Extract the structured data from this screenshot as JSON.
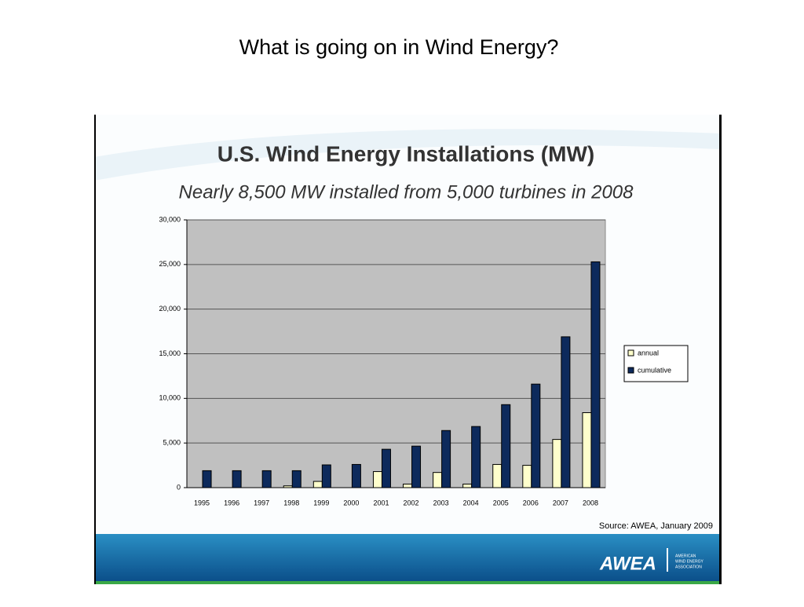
{
  "slide_title": "What is going on in Wind Energy?",
  "chart_data": {
    "type": "bar",
    "title": "U.S. Wind Energy Installations (MW)",
    "subtitle": "Nearly 8,500 MW installed from 5,000 turbines in 2008",
    "categories": [
      "1995",
      "1996",
      "1997",
      "1998",
      "1999",
      "2000",
      "2001",
      "2002",
      "2003",
      "2004",
      "2005",
      "2006",
      "2007",
      "2008"
    ],
    "series": [
      {
        "name": "annual",
        "color": "#ffffcc",
        "values": [
          0,
          0,
          0,
          200,
          700,
          0,
          1800,
          400,
          1700,
          400,
          2600,
          2500,
          5400,
          8400
        ]
      },
      {
        "name": "cumulative",
        "color": "#0d2a5c",
        "values": [
          1900,
          1900,
          1900,
          1900,
          2550,
          2600,
          4300,
          4650,
          6400,
          6850,
          9300,
          11600,
          16900,
          25300
        ]
      }
    ],
    "ylim": [
      0,
      30000
    ],
    "yticks": [
      0,
      {
        "value": 5000,
        "label": "5,000"
      },
      {
        "value": 10000,
        "label": "10,000"
      },
      {
        "value": 15000,
        "label": "15,000"
      },
      {
        "value": 20000,
        "label": "20,000"
      },
      {
        "value": 25000,
        "label": "25,000"
      },
      {
        "value": 30000,
        "label": "30,000"
      }
    ],
    "grid": true,
    "legend": "right",
    "source": "Source: AWEA, January 2009"
  },
  "logo": {
    "name": "AWEA",
    "tagline": [
      "AMERICAN",
      "WIND ENERGY",
      "ASSOCIATION"
    ]
  }
}
